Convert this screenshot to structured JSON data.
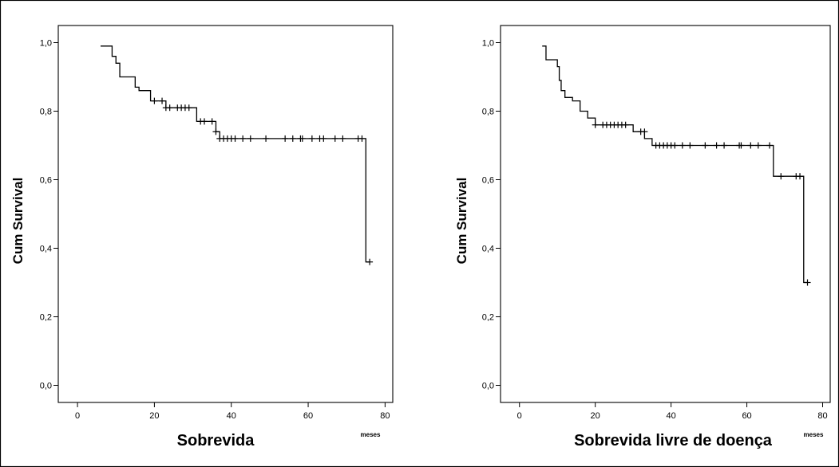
{
  "chart_data": [
    {
      "type": "line",
      "subtype": "kaplan-meier",
      "xlabel": "Sobrevida",
      "x_unit": "meses",
      "ylabel": "Cum Survival",
      "xlim": [
        -5,
        82
      ],
      "ylim": [
        -0.05,
        1.05
      ],
      "x_ticks": [
        0,
        20,
        40,
        60,
        80
      ],
      "y_ticks": [
        0.0,
        0.2,
        0.4,
        0.6,
        0.8,
        1.0
      ],
      "x_tick_labels": [
        "0",
        "20",
        "40",
        "60",
        "80"
      ],
      "y_tick_labels": [
        "0,0",
        "0,2",
        "0,4",
        "0,6",
        "0,8",
        "1,0"
      ],
      "grid": false,
      "steps": [
        {
          "x": 6,
          "y": 0.99
        },
        {
          "x": 9,
          "y": 0.96
        },
        {
          "x": 10,
          "y": 0.94
        },
        {
          "x": 11,
          "y": 0.9
        },
        {
          "x": 15,
          "y": 0.87
        },
        {
          "x": 16,
          "y": 0.86
        },
        {
          "x": 19,
          "y": 0.83
        },
        {
          "x": 23,
          "y": 0.81
        },
        {
          "x": 31,
          "y": 0.77
        },
        {
          "x": 36,
          "y": 0.74
        },
        {
          "x": 37,
          "y": 0.72
        },
        {
          "x": 75,
          "y": 0.36
        }
      ],
      "end_x": 76,
      "censored": [
        {
          "x": 20,
          "y": 0.83
        },
        {
          "x": 22,
          "y": 0.83
        },
        {
          "x": 23,
          "y": 0.81
        },
        {
          "x": 24,
          "y": 0.81
        },
        {
          "x": 26,
          "y": 0.81
        },
        {
          "x": 27,
          "y": 0.81
        },
        {
          "x": 28,
          "y": 0.81
        },
        {
          "x": 29,
          "y": 0.81
        },
        {
          "x": 32,
          "y": 0.77
        },
        {
          "x": 33,
          "y": 0.77
        },
        {
          "x": 35,
          "y": 0.77
        },
        {
          "x": 36,
          "y": 0.74
        },
        {
          "x": 37,
          "y": 0.72
        },
        {
          "x": 38,
          "y": 0.72
        },
        {
          "x": 39,
          "y": 0.72
        },
        {
          "x": 40,
          "y": 0.72
        },
        {
          "x": 41,
          "y": 0.72
        },
        {
          "x": 43,
          "y": 0.72
        },
        {
          "x": 45,
          "y": 0.72
        },
        {
          "x": 49,
          "y": 0.72
        },
        {
          "x": 54,
          "y": 0.72
        },
        {
          "x": 56,
          "y": 0.72
        },
        {
          "x": 58,
          "y": 0.72
        },
        {
          "x": 58.5,
          "y": 0.72
        },
        {
          "x": 61,
          "y": 0.72
        },
        {
          "x": 63,
          "y": 0.72
        },
        {
          "x": 64,
          "y": 0.72
        },
        {
          "x": 67,
          "y": 0.72
        },
        {
          "x": 69,
          "y": 0.72
        },
        {
          "x": 73,
          "y": 0.72
        },
        {
          "x": 74,
          "y": 0.72
        },
        {
          "x": 76,
          "y": 0.36
        }
      ]
    },
    {
      "type": "line",
      "subtype": "kaplan-meier",
      "xlabel": "Sobrevida livre de doença",
      "x_unit": "meses",
      "ylabel": "Cum Survival",
      "xlim": [
        -5,
        82
      ],
      "ylim": [
        -0.05,
        1.05
      ],
      "x_ticks": [
        0,
        20,
        40,
        60,
        80
      ],
      "y_ticks": [
        0.0,
        0.2,
        0.4,
        0.6,
        0.8,
        1.0
      ],
      "x_tick_labels": [
        "0",
        "20",
        "40",
        "60",
        "80"
      ],
      "y_tick_labels": [
        "0,0",
        "0,2",
        "0,4",
        "0,6",
        "0,8",
        "1,0"
      ],
      "grid": false,
      "steps": [
        {
          "x": 6,
          "y": 0.99
        },
        {
          "x": 7,
          "y": 0.95
        },
        {
          "x": 10,
          "y": 0.93
        },
        {
          "x": 10.5,
          "y": 0.89
        },
        {
          "x": 11,
          "y": 0.86
        },
        {
          "x": 12,
          "y": 0.84
        },
        {
          "x": 14,
          "y": 0.83
        },
        {
          "x": 16,
          "y": 0.8
        },
        {
          "x": 18,
          "y": 0.78
        },
        {
          "x": 20,
          "y": 0.76
        },
        {
          "x": 30,
          "y": 0.74
        },
        {
          "x": 33,
          "y": 0.72
        },
        {
          "x": 35,
          "y": 0.7
        },
        {
          "x": 67,
          "y": 0.61
        },
        {
          "x": 75,
          "y": 0.3
        }
      ],
      "end_x": 76,
      "censored": [
        {
          "x": 20,
          "y": 0.76
        },
        {
          "x": 22,
          "y": 0.76
        },
        {
          "x": 23,
          "y": 0.76
        },
        {
          "x": 24,
          "y": 0.76
        },
        {
          "x": 25,
          "y": 0.76
        },
        {
          "x": 26,
          "y": 0.76
        },
        {
          "x": 27,
          "y": 0.76
        },
        {
          "x": 28,
          "y": 0.76
        },
        {
          "x": 32,
          "y": 0.74
        },
        {
          "x": 33,
          "y": 0.74
        },
        {
          "x": 36,
          "y": 0.7
        },
        {
          "x": 37,
          "y": 0.7
        },
        {
          "x": 38,
          "y": 0.7
        },
        {
          "x": 39,
          "y": 0.7
        },
        {
          "x": 40,
          "y": 0.7
        },
        {
          "x": 41,
          "y": 0.7
        },
        {
          "x": 43,
          "y": 0.7
        },
        {
          "x": 45,
          "y": 0.7
        },
        {
          "x": 49,
          "y": 0.7
        },
        {
          "x": 52,
          "y": 0.7
        },
        {
          "x": 54,
          "y": 0.7
        },
        {
          "x": 58,
          "y": 0.7
        },
        {
          "x": 58.5,
          "y": 0.7
        },
        {
          "x": 61,
          "y": 0.7
        },
        {
          "x": 63,
          "y": 0.7
        },
        {
          "x": 66,
          "y": 0.7
        },
        {
          "x": 69,
          "y": 0.61
        },
        {
          "x": 73,
          "y": 0.61
        },
        {
          "x": 74,
          "y": 0.61
        },
        {
          "x": 76,
          "y": 0.3
        }
      ]
    }
  ]
}
